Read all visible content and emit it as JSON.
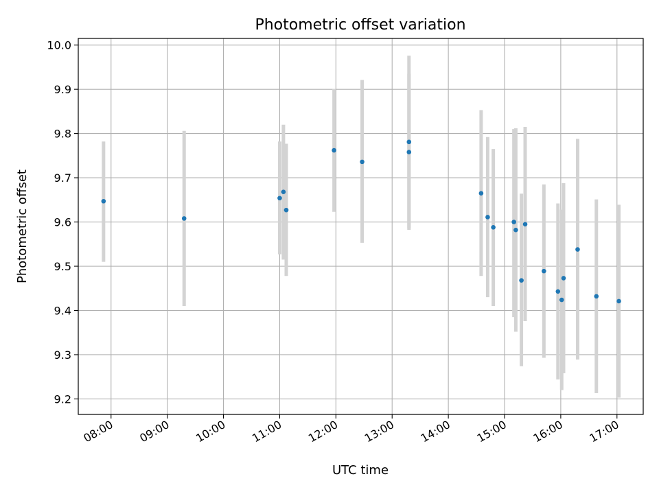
{
  "chart_data": {
    "type": "scatter",
    "title": "Photometric offset variation",
    "xlabel": "UTC time",
    "ylabel": "Photometric offset",
    "x_format": "HH:MM",
    "xlim": [
      "07:25",
      "17:28"
    ],
    "ylim": [
      9.165,
      10.015
    ],
    "x_ticks": [
      "08:00",
      "09:00",
      "10:00",
      "11:00",
      "12:00",
      "13:00",
      "14:00",
      "15:00",
      "16:00",
      "17:00"
    ],
    "y_ticks": [
      9.2,
      9.3,
      9.4,
      9.5,
      9.6,
      9.7,
      9.8,
      9.9,
      10.0
    ],
    "y_tick_labels": [
      "9.2",
      "9.3",
      "9.4",
      "9.5",
      "9.6",
      "9.7",
      "9.8",
      "9.9",
      "10.0"
    ],
    "grid": true,
    "marker_color": "#1f77b4",
    "errorbar_color": "#d3d3d3",
    "points": [
      {
        "t": "07:52",
        "y": 9.647,
        "err_low": 9.51,
        "err_high": 9.782
      },
      {
        "t": "09:18",
        "y": 9.608,
        "err_low": 9.41,
        "err_high": 9.806
      },
      {
        "t": "11:00",
        "y": 9.654,
        "err_low": 9.527,
        "err_high": 9.782
      },
      {
        "t": "11:04",
        "y": 9.668,
        "err_low": 9.515,
        "err_high": 9.82
      },
      {
        "t": "11:07",
        "y": 9.627,
        "err_low": 9.478,
        "err_high": 9.777
      },
      {
        "t": "11:58",
        "y": 9.762,
        "err_low": 9.623,
        "err_high": 9.901
      },
      {
        "t": "12:28",
        "y": 9.736,
        "err_low": 9.553,
        "err_high": 9.921
      },
      {
        "t": "13:18",
        "y": 9.781,
        "err_low": 9.586,
        "err_high": 9.976
      },
      {
        "t": "13:18",
        "y": 9.758,
        "err_low": 9.582,
        "err_high": 9.935
      },
      {
        "t": "14:35",
        "y": 9.665,
        "err_low": 9.478,
        "err_high": 9.853
      },
      {
        "t": "14:42",
        "y": 9.611,
        "err_low": 9.43,
        "err_high": 9.792
      },
      {
        "t": "14:48",
        "y": 9.588,
        "err_low": 9.41,
        "err_high": 9.765
      },
      {
        "t": "15:10",
        "y": 9.6,
        "err_low": 9.385,
        "err_high": 9.81
      },
      {
        "t": "15:12",
        "y": 9.582,
        "err_low": 9.352,
        "err_high": 9.812
      },
      {
        "t": "15:18",
        "y": 9.468,
        "err_low": 9.274,
        "err_high": 9.664
      },
      {
        "t": "15:22",
        "y": 9.595,
        "err_low": 9.376,
        "err_high": 9.815
      },
      {
        "t": "15:42",
        "y": 9.489,
        "err_low": 9.293,
        "err_high": 9.685
      },
      {
        "t": "15:57",
        "y": 9.443,
        "err_low": 9.244,
        "err_high": 9.642
      },
      {
        "t": "16:01",
        "y": 9.424,
        "err_low": 9.22,
        "err_high": 9.628
      },
      {
        "t": "16:03",
        "y": 9.473,
        "err_low": 9.258,
        "err_high": 9.688
      },
      {
        "t": "16:18",
        "y": 9.538,
        "err_low": 9.289,
        "err_high": 9.788
      },
      {
        "t": "16:38",
        "y": 9.432,
        "err_low": 9.213,
        "err_high": 9.651
      },
      {
        "t": "17:02",
        "y": 9.421,
        "err_low": 9.203,
        "err_high": 9.639
      }
    ]
  }
}
